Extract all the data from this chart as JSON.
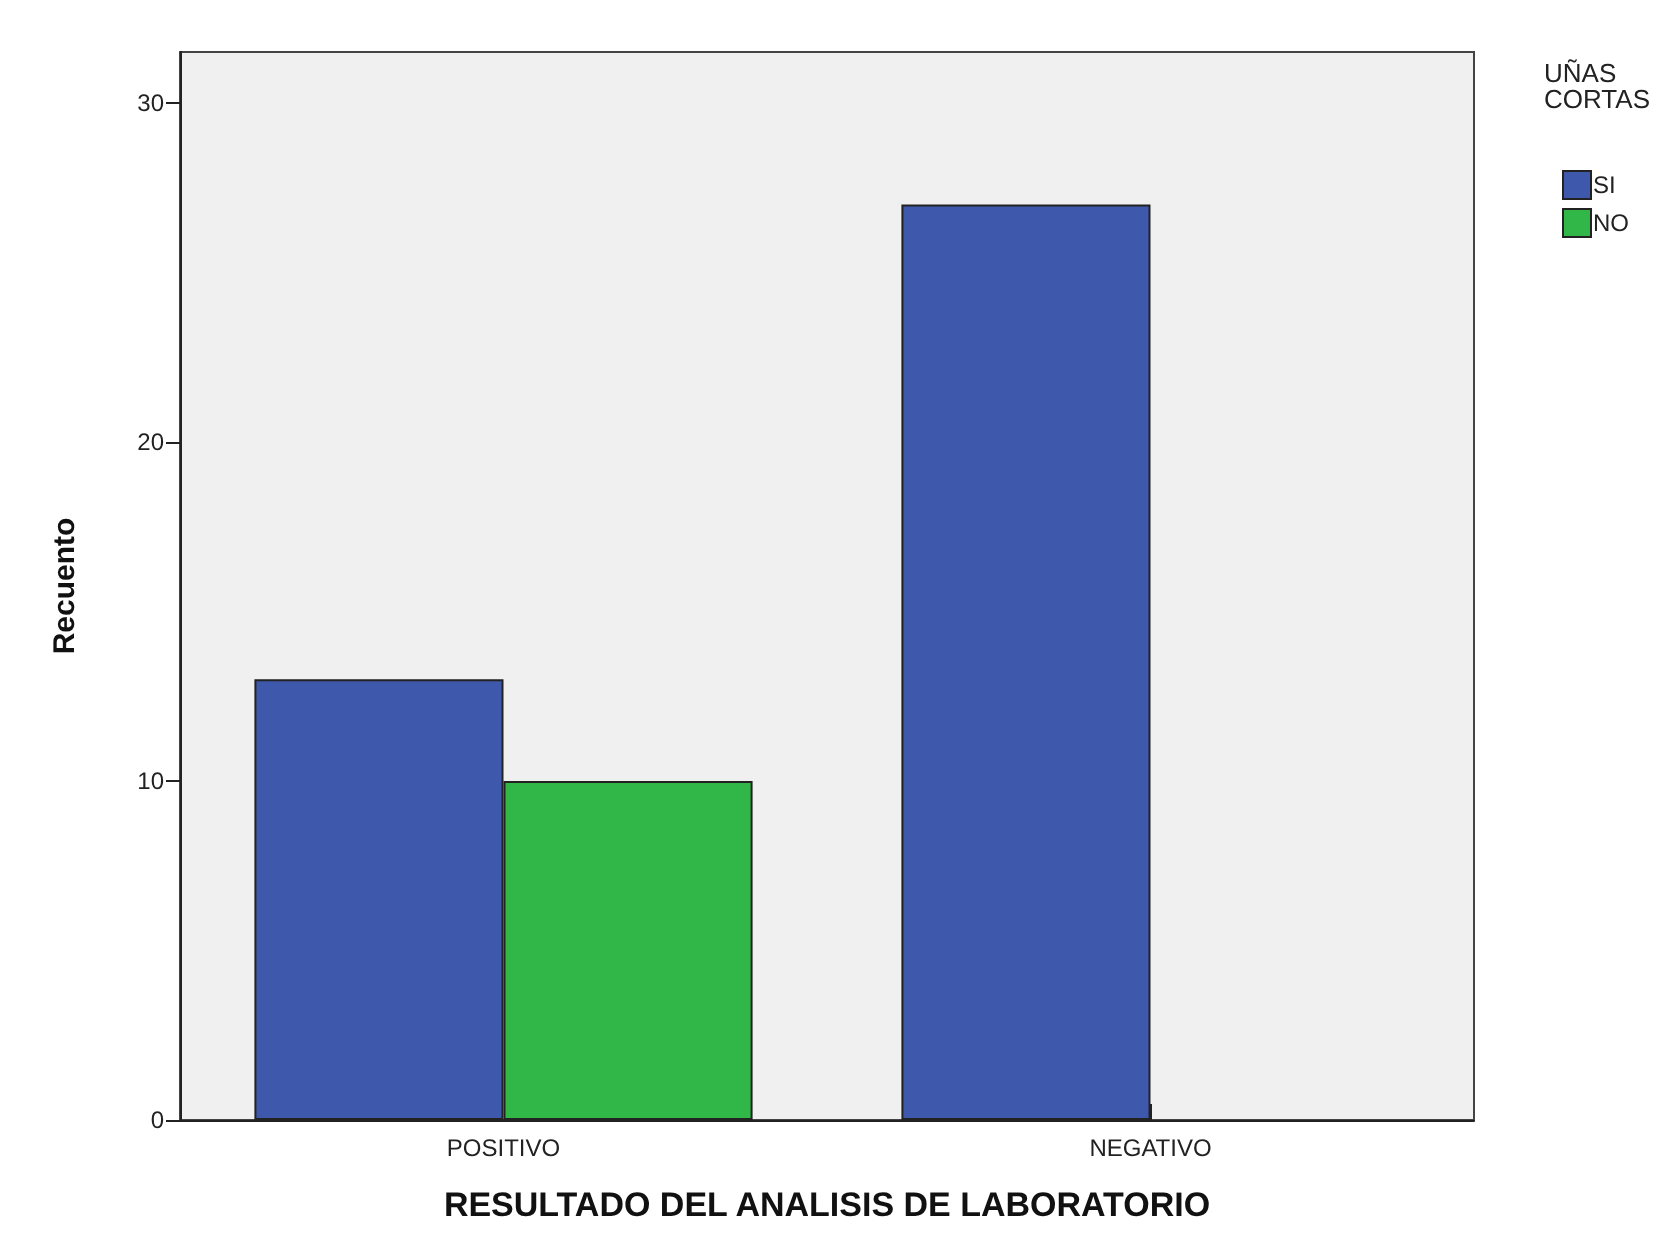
{
  "chart_data": {
    "type": "bar",
    "xlabel": "RESULTADO DEL ANALISIS DE LABORATORIO",
    "ylabel": "Recuento",
    "legend_title": "UÑAS\nCORTAS",
    "categories": [
      "POSITIVO",
      "NEGATIVO"
    ],
    "series": [
      {
        "name": "SI",
        "color": "#3e58ac",
        "values": [
          13,
          27
        ]
      },
      {
        "name": "NO",
        "color": "#31b648",
        "values": [
          10,
          null
        ]
      }
    ],
    "ylim": [
      0,
      31.5
    ],
    "yticks": [
      0,
      10,
      20,
      30
    ],
    "grid": false,
    "legend": "top right"
  }
}
